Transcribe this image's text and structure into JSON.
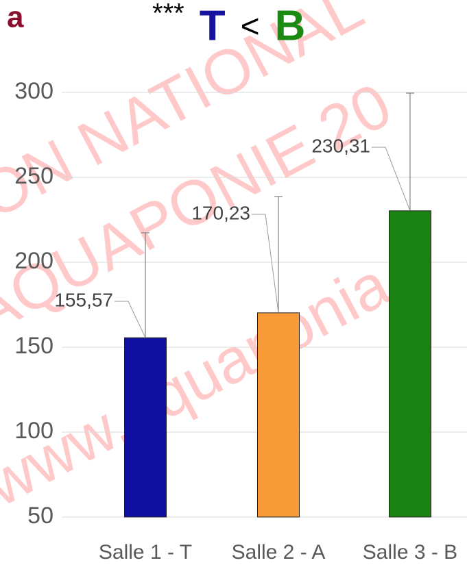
{
  "chart_data": {
    "type": "bar",
    "panel_label": "a",
    "title_parts": [
      {
        "text": "***",
        "color": "#000000"
      },
      {
        "text": "T",
        "color": "#1414a0"
      },
      {
        "text": "<",
        "color": "#000000"
      },
      {
        "text": "B",
        "color": "#1a8a12"
      }
    ],
    "watermark": [
      "ON NATIONAL",
      "AQUAPONIE 20",
      "www.aquaponia"
    ],
    "categories": [
      "Salle 1 - T",
      "Salle 2 - A",
      "Salle 3 - B"
    ],
    "values": [
      155.57,
      170.23,
      230.31
    ],
    "value_labels": [
      "155,57",
      "170,23",
      "230,31"
    ],
    "errors": [
      61.8,
      68.5,
      69.3
    ],
    "colors": [
      "#1010a0",
      "#f79a38",
      "#1a8212"
    ],
    "ylim": [
      50,
      300
    ],
    "yticks": [
      50,
      100,
      150,
      200,
      250,
      300
    ],
    "grid": true
  }
}
